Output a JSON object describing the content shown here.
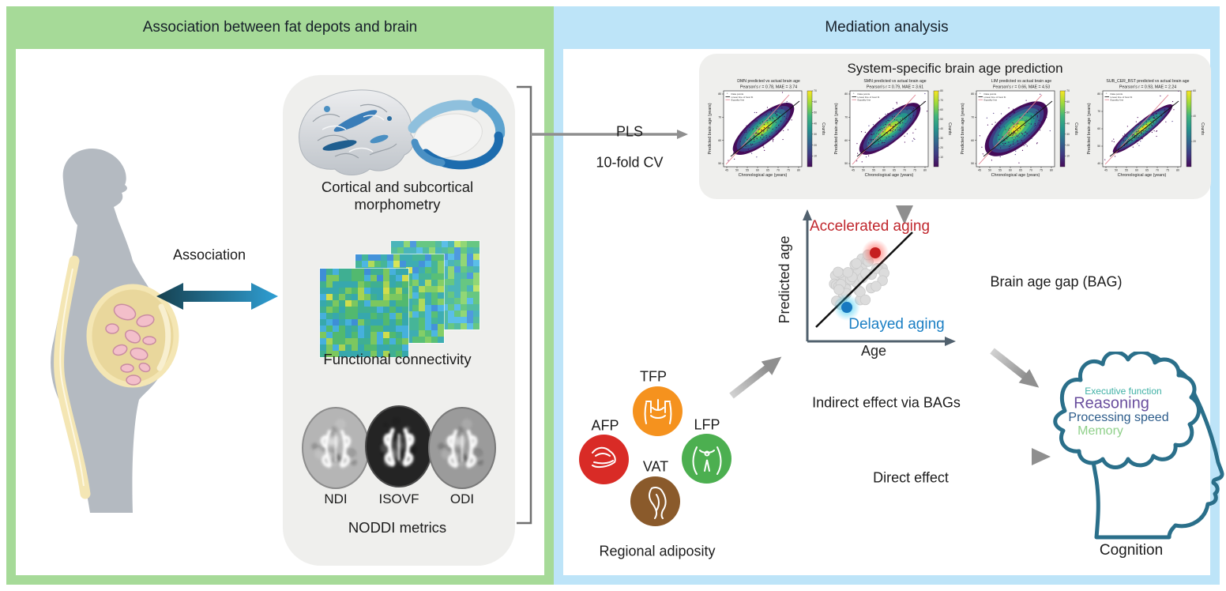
{
  "figure": {
    "left_panel": {
      "title": "Association between fat depots and brain",
      "association_label": "Association",
      "morphometry_label": "Cortical and subcortical morphometry",
      "connectivity_label": "Functional connectivity",
      "noddi_label": "NODDI metrics",
      "mri_labels": [
        "NDI",
        "ISOVF",
        "ODI"
      ]
    },
    "right_panel": {
      "title": "Mediation analysis",
      "pls_label": "PLS",
      "cv_label": "10-fold CV",
      "prediction_box_title": "System-specific brain age prediction",
      "bag_diagram": {
        "accelerated_label": "Accelerated aging",
        "delayed_label": "Delayed aging",
        "ylabel": "Predicted age",
        "xlabel": "Age",
        "gap_label": "Brain age gap (BAG)"
      },
      "adiposity": {
        "caption": "Regional adiposity",
        "items": [
          {
            "label": "TFP",
            "color": "#f5921e"
          },
          {
            "label": "AFP",
            "color": "#d92b26"
          },
          {
            "label": "LFP",
            "color": "#4caf50"
          },
          {
            "label": "VAT",
            "color": "#8a5a2b"
          }
        ]
      },
      "effects": {
        "indirect_label": "Indirect effect via BAGs",
        "direct_label": "Direct effect"
      },
      "cognition": {
        "caption": "Cognition",
        "words": [
          {
            "text": "Executive function",
            "color": "#3fb0a5"
          },
          {
            "text": "Reasoning",
            "color": "#6a4f9e"
          },
          {
            "text": "Processing speed",
            "color": "#2b5b8a"
          },
          {
            "text": "Memory",
            "color": "#8fd08a"
          }
        ]
      }
    }
  },
  "colors": {
    "left_panel_green": "#a6da98",
    "right_panel_blue": "#bde4f8",
    "box_gray": "#efefed",
    "arrow_gray": "#8f8f8f",
    "accelerated_red": "#c0272d",
    "delayed_blue": "#1b7fc4",
    "head_teal": "#2a6f8a",
    "association_arrow_dark": "#16404f",
    "association_arrow_light": "#2f9fd4"
  },
  "chart_data": {
    "type": "scatter",
    "note": "Four density-scatter panels of system-specific predicted vs chronological brain age",
    "xlabel": "Chronological age (years)",
    "ylabel": "Predicted brain age (years)",
    "colorbar_label": "Counts",
    "legend": [
      "Data points",
      "Linear line of best fit",
      "Equality line"
    ],
    "x_ticks": [
      45,
      50,
      55,
      60,
      65,
      70,
      75,
      80
    ],
    "panels": [
      {
        "title": "DMN predicted vs actual brain age",
        "subtitle": "Pearson's r = 0.78, MAE = 3.74",
        "pearson_r": 0.78,
        "mae": 3.74,
        "y_ticks": [
          50,
          60,
          70,
          80
        ],
        "colorbar_ticks": [
          10,
          20,
          30,
          40,
          50,
          60,
          70
        ]
      },
      {
        "title": "SMN predicted vs actual brain age",
        "subtitle": "Pearson's r = 0.79, MAE = 3.61",
        "pearson_r": 0.79,
        "mae": 3.61,
        "y_ticks": [
          50,
          60,
          70,
          80
        ],
        "colorbar_ticks": [
          10,
          20,
          30,
          40,
          50,
          60,
          70,
          80
        ]
      },
      {
        "title": "LIM predicted vs actual brain age",
        "subtitle": "Pearson's r = 0.66, MAE = 4.53",
        "pearson_r": 0.66,
        "mae": 4.53,
        "y_ticks": [
          50,
          60,
          70,
          80
        ],
        "colorbar_ticks": [
          10,
          20,
          30,
          40,
          50,
          60,
          70
        ]
      },
      {
        "title": "SUB_CER_BST predicted vs actual brain age",
        "subtitle": "Pearson's r = 0.93, MAE = 2.24",
        "pearson_r": 0.93,
        "mae": 2.24,
        "y_ticks": [
          40,
          50,
          60,
          70,
          80
        ],
        "colorbar_ticks": [
          20,
          40,
          60
        ]
      }
    ]
  }
}
